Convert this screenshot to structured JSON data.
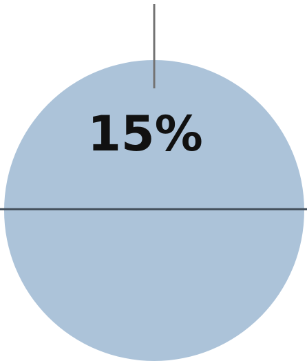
{
  "figure": {
    "percent_label": "15%",
    "fill_color": "#acc3d9",
    "axis_color": "#44505c",
    "pointer_color": "#737373"
  }
}
